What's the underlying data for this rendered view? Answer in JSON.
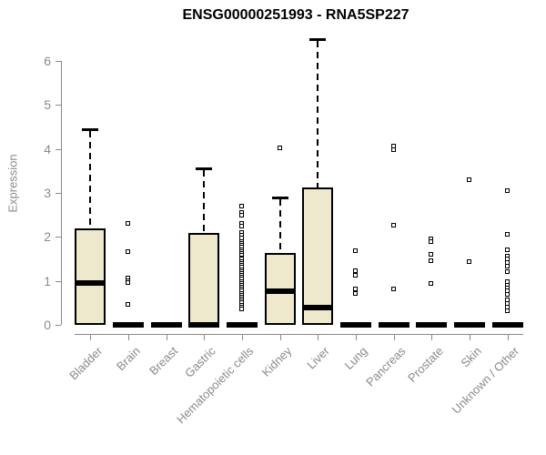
{
  "title": "ENSG00000251993 - RNA5SP227",
  "chart_data": {
    "type": "box",
    "title": "ENSG00000251993 - RNA5SP227",
    "xlabel": "",
    "ylabel": "Expression",
    "ylim": [
      0,
      6.6
    ],
    "yticks": [
      0,
      1,
      2,
      3,
      4,
      5,
      6
    ],
    "grid": false,
    "legend": "none",
    "categories": [
      "Bladder",
      "Brain",
      "Breast",
      "Gastric",
      "Hematopoietic cells",
      "Kidney",
      "Liver",
      "Lung",
      "Pancreas",
      "Prostate",
      "Skin",
      "Unknown / Other"
    ],
    "series": [
      {
        "name": "Bladder",
        "q1": 0,
        "median": 0.95,
        "q3": 2.2,
        "whisker_low": 0,
        "whisker_high": 4.45,
        "outliers": []
      },
      {
        "name": "Brain",
        "q1": 0,
        "median": 0,
        "q3": 0,
        "whisker_low": 0,
        "whisker_high": 0,
        "outliers": [
          2.3,
          1.65,
          1.05,
          1.0,
          0.95,
          0.45
        ]
      },
      {
        "name": "Breast",
        "q1": 0,
        "median": 0,
        "q3": 0,
        "whisker_low": 0,
        "whisker_high": 0,
        "outliers": []
      },
      {
        "name": "Gastric",
        "q1": 0,
        "median": 0,
        "q3": 2.1,
        "whisker_low": 0,
        "whisker_high": 3.55,
        "outliers": []
      },
      {
        "name": "Hematopoietic cells",
        "q1": 0,
        "median": 0,
        "q3": 0,
        "whisker_low": 0,
        "whisker_high": 0,
        "outliers": [
          2.7,
          2.55,
          2.48,
          2.3,
          2.23,
          2.08,
          2.02,
          1.96,
          1.88,
          1.84,
          1.79,
          1.75,
          1.7,
          1.66,
          1.61,
          1.57,
          1.52,
          1.48,
          1.43,
          1.39,
          1.34,
          1.3,
          1.25,
          1.21,
          1.16,
          1.12,
          1.07,
          1.03,
          0.98,
          0.94,
          0.89,
          0.85,
          0.8,
          0.76,
          0.71,
          0.67,
          0.62,
          0.58,
          0.53,
          0.49,
          0.44,
          0.4,
          0.35
        ]
      },
      {
        "name": "Kidney",
        "q1": 0,
        "median": 0.77,
        "q3": 1.63,
        "whisker_low": 0,
        "whisker_high": 2.9,
        "outliers": [
          4.02
        ]
      },
      {
        "name": "Liver",
        "q1": 0,
        "median": 0.4,
        "q3": 3.12,
        "whisker_low": 0,
        "whisker_high": 6.5,
        "outliers": []
      },
      {
        "name": "Lung",
        "q1": 0,
        "median": 0,
        "q3": 0,
        "whisker_low": 0,
        "whisker_high": 0,
        "outliers": [
          1.68,
          1.22,
          1.12,
          0.8,
          0.7
        ]
      },
      {
        "name": "Pancreas",
        "q1": 0,
        "median": 0,
        "q3": 0,
        "whisker_low": 0,
        "whisker_high": 0,
        "outliers": [
          4.05,
          3.98,
          2.25,
          0.8
        ]
      },
      {
        "name": "Prostate",
        "q1": 0,
        "median": 0,
        "q3": 0,
        "whisker_low": 0,
        "whisker_high": 0,
        "outliers": [
          1.95,
          1.88,
          1.6,
          1.45,
          0.93
        ]
      },
      {
        "name": "Skin",
        "q1": 0,
        "median": 0,
        "q3": 0,
        "whisker_low": 0,
        "whisker_high": 0,
        "outliers": [
          3.3,
          1.43
        ]
      },
      {
        "name": "Unknown / Other",
        "q1": 0,
        "median": 0,
        "q3": 0,
        "whisker_low": 0,
        "whisker_high": 0,
        "outliers": [
          3.05,
          2.05,
          1.7,
          1.55,
          1.48,
          1.4,
          1.33,
          1.21,
          0.97,
          0.9,
          0.83,
          0.76,
          0.68,
          0.56,
          0.48,
          0.4,
          0.31
        ]
      }
    ],
    "colors": {
      "box_fill": "#EEE8CD",
      "box_border": "#000000",
      "median": "#000000",
      "whisker": "#000000",
      "axis": "#8a8a8a",
      "tick_label": "#8a8a8a",
      "title": "#000000",
      "background": "#ffffff"
    }
  }
}
